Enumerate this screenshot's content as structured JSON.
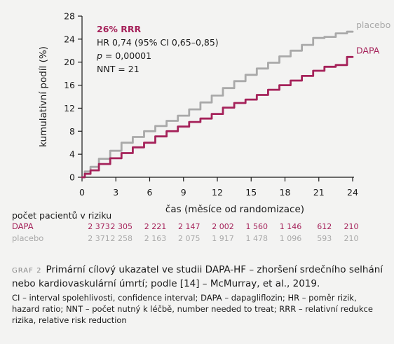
{
  "chart_data": {
    "type": "line",
    "xlabel": "čas (měsíce od randomizace)",
    "ylabel": "kumulativní podíl (%)",
    "xlim": [
      0,
      24
    ],
    "ylim": [
      0,
      28
    ],
    "x_ticks": [
      "0",
      "3",
      "6",
      "9",
      "12",
      "15",
      "18",
      "21",
      "24"
    ],
    "y_ticks": [
      "0",
      "4",
      "8",
      "12",
      "16",
      "20",
      "24",
      "28"
    ],
    "series": [
      {
        "name": "placebo",
        "color": "#a9a9a9",
        "points": [
          [
            0,
            0
          ],
          [
            0.5,
            1.0
          ],
          [
            1,
            1.8
          ],
          [
            2,
            3.2
          ],
          [
            3,
            4.6
          ],
          [
            4,
            6.0
          ],
          [
            5,
            7.0
          ],
          [
            6,
            8.0
          ],
          [
            7,
            8.9
          ],
          [
            8,
            9.8
          ],
          [
            9,
            10.7
          ],
          [
            10,
            11.8
          ],
          [
            11,
            13.0
          ],
          [
            12,
            14.2
          ],
          [
            13,
            15.5
          ],
          [
            14,
            16.7
          ],
          [
            15,
            17.8
          ],
          [
            16,
            18.9
          ],
          [
            17,
            19.9
          ],
          [
            18,
            21.0
          ],
          [
            19,
            22.0
          ],
          [
            20,
            23.0
          ],
          [
            21,
            24.2
          ],
          [
            22,
            24.4
          ],
          [
            23,
            25.0
          ],
          [
            24,
            25.3
          ]
        ]
      },
      {
        "name": "DAPA",
        "color": "#a5225a",
        "points": [
          [
            0,
            0
          ],
          [
            0.5,
            0.6
          ],
          [
            1,
            1.2
          ],
          [
            2,
            2.3
          ],
          [
            3,
            3.3
          ],
          [
            4,
            4.2
          ],
          [
            5,
            5.2
          ],
          [
            6,
            6.0
          ],
          [
            7,
            7.1
          ],
          [
            8,
            8.0
          ],
          [
            9,
            8.8
          ],
          [
            10,
            9.6
          ],
          [
            11,
            10.2
          ],
          [
            12,
            11.0
          ],
          [
            13,
            12.1
          ],
          [
            14,
            12.9
          ],
          [
            15,
            13.5
          ],
          [
            16,
            14.3
          ],
          [
            17,
            15.2
          ],
          [
            18,
            16.0
          ],
          [
            19,
            16.8
          ],
          [
            20,
            17.6
          ],
          [
            21,
            18.5
          ],
          [
            22,
            19.2
          ],
          [
            23,
            19.5
          ],
          [
            24,
            20.9
          ]
        ]
      }
    ],
    "stats": {
      "rrr": "26% RRR",
      "hr": "HR 0,74 (95% CI 0,65–0,85)",
      "p_label": "p",
      "p_rest": " = 0,00001",
      "nnt": "NNT = 21"
    },
    "risk_table": {
      "title": "počet pacientů v riziku",
      "rows": [
        {
          "name": "DAPA",
          "color": "#a5225a",
          "values": [
            "2 373",
            "2 305",
            "2 221",
            "2 147",
            "2 002",
            "1 560",
            "1 146",
            "612",
            "210"
          ]
        },
        {
          "name": "placebo",
          "color": "#a9a9a9",
          "values": [
            "2 371",
            "2 258",
            "2 163",
            "2 075",
            "1 917",
            "1 478",
            "1 096",
            "593",
            "210"
          ]
        }
      ]
    }
  },
  "caption": {
    "tag": "GRAF 2",
    "text": "Primární cílový ukazatel ve studii DAPA-HF – zhoršení srdečního selhání nebo kardiovaskulární úmrtí; podle [14] – McMurray, et al., 2019."
  },
  "footnote": "CI – interval spolehlivosti, confidence interval; DAPA – dapagliflozin; HR – poměr rizik, hazard ratio; NNT – počet nutný k léčbě, number needed to treat; RRR – relativní redukce rizika, relative risk reduction"
}
